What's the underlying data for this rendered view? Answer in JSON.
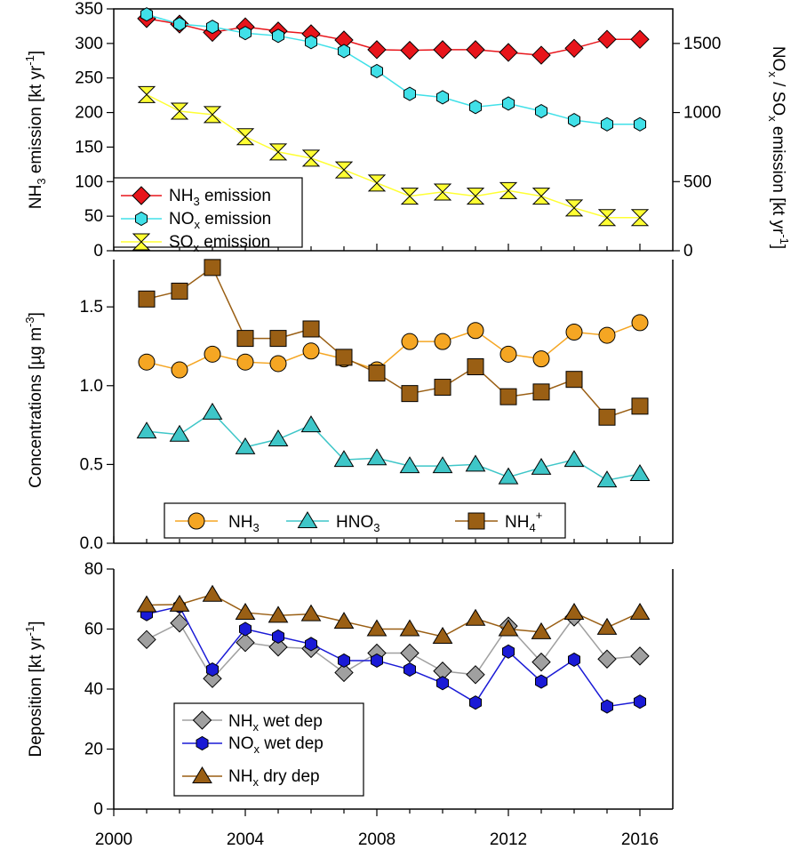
{
  "chart_data": [
    {
      "type": "line",
      "panel": "emissions",
      "x": [
        2001,
        2002,
        2003,
        2004,
        2005,
        2006,
        2007,
        2008,
        2009,
        2010,
        2011,
        2012,
        2013,
        2014,
        2015,
        2016
      ],
      "xlim": [
        2000,
        2017
      ],
      "ylabel_left": "NH3 emission [kt yr-1]",
      "ylabel_right": "NOx / SOx emission [kt yr-1]",
      "ylim_left": [
        0,
        350
      ],
      "ylim_right": [
        0,
        1750
      ],
      "yticks_left": [
        0,
        50,
        100,
        150,
        200,
        250,
        300,
        350
      ],
      "yticks_right": [
        0,
        500,
        1000,
        1500
      ],
      "legend_position": "bottom-left",
      "series": [
        {
          "name": "NH3 emission",
          "axis": "left",
          "color": "#e8151b",
          "marker": "diamond",
          "values": [
            336,
            328,
            316,
            324,
            318,
            314,
            305,
            291,
            290,
            291,
            291,
            287,
            283,
            293,
            306,
            306
          ]
        },
        {
          "name": "NOx emission",
          "axis": "right",
          "color": "#40e0e8",
          "marker": "hexagon",
          "values": [
            1710,
            1640,
            1620,
            1575,
            1555,
            1510,
            1445,
            1300,
            1135,
            1110,
            1040,
            1065,
            1010,
            945,
            915,
            915
          ]
        },
        {
          "name": "SOx emission",
          "axis": "right",
          "color": "#ffff33",
          "marker": "hourglass",
          "values": [
            1130,
            1010,
            985,
            825,
            715,
            670,
            585,
            490,
            395,
            425,
            395,
            435,
            395,
            310,
            240,
            240
          ]
        }
      ]
    },
    {
      "type": "line",
      "panel": "concentrations",
      "x": [
        2001,
        2002,
        2003,
        2004,
        2005,
        2006,
        2007,
        2008,
        2009,
        2010,
        2011,
        2012,
        2013,
        2014,
        2015,
        2016
      ],
      "xlim": [
        2000,
        2017
      ],
      "ylabel": "Concentrations [µg m-3]",
      "ylim": [
        0,
        1.8
      ],
      "yticks": [
        0.0,
        0.5,
        1.0,
        1.5
      ],
      "legend_position": "bottom",
      "series": [
        {
          "name": "NH3",
          "color": "#f5a623",
          "marker": "circle",
          "values": [
            1.15,
            1.1,
            1.2,
            1.15,
            1.14,
            1.22,
            1.17,
            1.1,
            1.28,
            1.28,
            1.35,
            1.2,
            1.17,
            1.34,
            1.32,
            1.4
          ]
        },
        {
          "name": "HNO3",
          "color": "#3ec6c8",
          "marker": "triangle",
          "values": [
            0.71,
            0.69,
            0.83,
            0.61,
            0.66,
            0.75,
            0.53,
            0.54,
            0.49,
            0.49,
            0.5,
            0.42,
            0.48,
            0.53,
            0.4,
            0.44
          ]
        },
        {
          "name": "NH4+",
          "color": "#9a5f14",
          "marker": "square",
          "values": [
            1.55,
            1.6,
            1.75,
            1.3,
            1.3,
            1.36,
            1.18,
            1.08,
            0.95,
            0.99,
            1.12,
            0.93,
            0.96,
            1.04,
            0.8,
            0.87
          ]
        }
      ]
    },
    {
      "type": "line",
      "panel": "deposition",
      "x": [
        2001,
        2002,
        2003,
        2004,
        2005,
        2006,
        2007,
        2008,
        2009,
        2010,
        2011,
        2012,
        2013,
        2014,
        2015,
        2016
      ],
      "xlim": [
        2000,
        2017
      ],
      "xticks": [
        2000,
        2004,
        2008,
        2012,
        2016
      ],
      "ylabel": "Deposition [kt yr-1]",
      "ylim": [
        0,
        80
      ],
      "yticks": [
        0,
        20,
        40,
        60,
        80
      ],
      "legend_position": "bottom-left",
      "series": [
        {
          "name": "NHx wet dep",
          "color": "#a0a0a0",
          "marker": "diamond",
          "values": [
            56.5,
            62.0,
            43.5,
            55.5,
            54.0,
            53.5,
            45.5,
            52.0,
            52.0,
            46.0,
            44.8,
            61.0,
            49.0,
            64.0,
            50.0,
            51.0
          ]
        },
        {
          "name": "NOx wet dep",
          "color": "#1a1ad6",
          "marker": "hexagon",
          "values": [
            65.0,
            67.5,
            46.5,
            60.0,
            57.5,
            55.0,
            49.5,
            49.5,
            46.5,
            42.0,
            35.5,
            52.5,
            42.5,
            49.8,
            34.2,
            35.8
          ]
        },
        {
          "name": "NHx dry dep",
          "color": "#9a5f14",
          "marker": "triangle",
          "values": [
            68.0,
            68.2,
            71.5,
            65.5,
            64.5,
            65.0,
            62.5,
            60.0,
            60.0,
            57.5,
            63.5,
            60.0,
            59.0,
            65.5,
            60.5,
            65.5
          ]
        }
      ]
    }
  ]
}
